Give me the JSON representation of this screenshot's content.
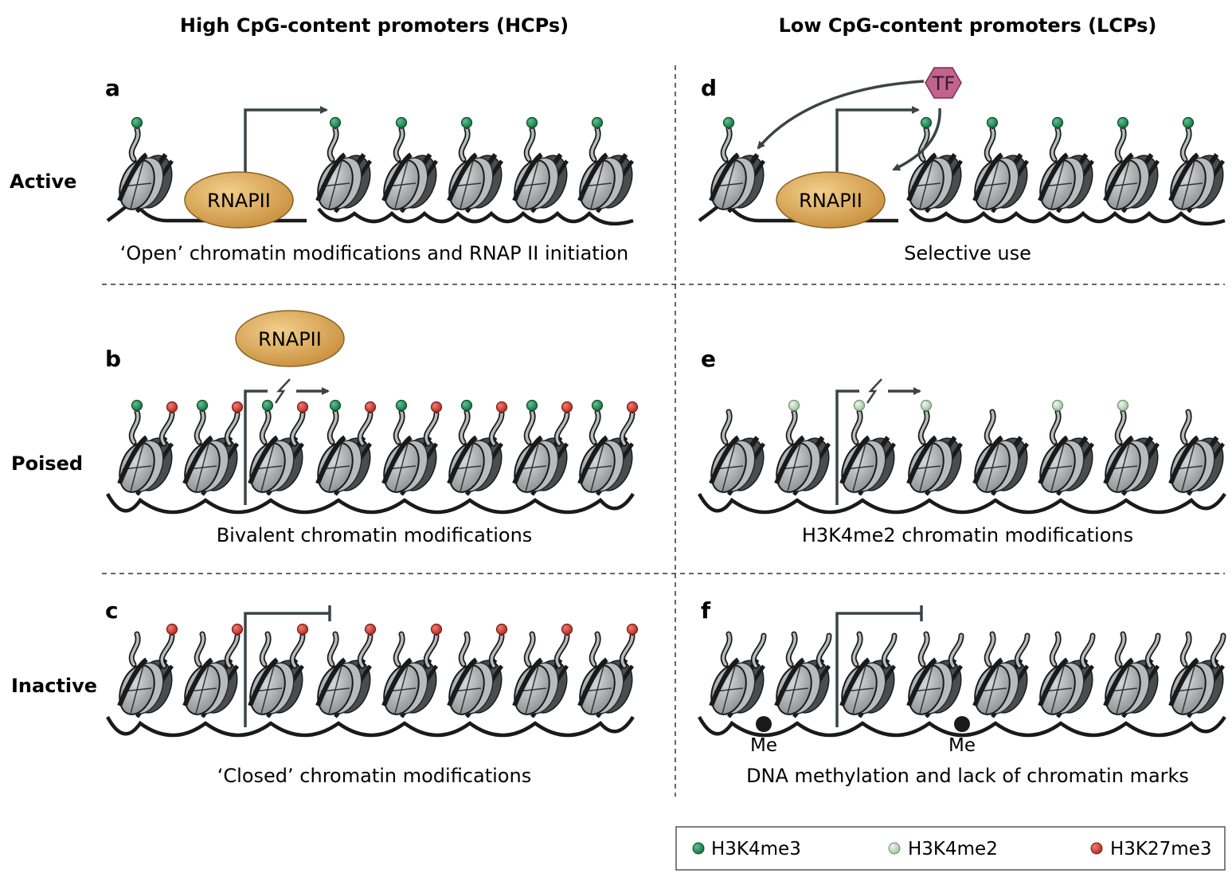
{
  "columns": [
    {
      "title": "High CpG-content promoters (HCPs)"
    },
    {
      "title": "Low CpG-content promoters (LCPs)"
    }
  ],
  "rows": [
    {
      "label": "Active"
    },
    {
      "label": "Poised"
    },
    {
      "label": "Inactive"
    }
  ],
  "panels": {
    "a": {
      "letter": "a",
      "caption": "‘Open’ chromatin modifications and RNAP II initiation",
      "polymerase": "RNAPII"
    },
    "b": {
      "letter": "b",
      "caption": "Bivalent chromatin modifications",
      "polymerase": "RNAPII"
    },
    "c": {
      "letter": "c",
      "caption": "‘Closed’ chromatin modifications"
    },
    "d": {
      "letter": "d",
      "caption": "Selective use",
      "polymerase": "RNAPII",
      "factor": "TF"
    },
    "e": {
      "letter": "e",
      "caption": "H3K4me2 chromatin modifications"
    },
    "f": {
      "letter": "f",
      "caption": "DNA methylation and lack of chromatin marks",
      "methyl_labels": [
        "Me",
        "Me"
      ]
    }
  },
  "legend": [
    {
      "label": "H3K4me3",
      "color": "#1f8f5a"
    },
    {
      "label": "H3K4me2",
      "color": "#bcd8bc"
    },
    {
      "label": "H3K27me3",
      "color": "#d9423a"
    }
  ],
  "colors": {
    "polymerase_fill": "#d9a85a",
    "tf_fill": "#c0648e",
    "nucleosome_dark": "#4a4d4f",
    "nucleosome_light": "#b8bbbd",
    "dna": "#1a1a1a",
    "arrow": "#3a4448"
  }
}
